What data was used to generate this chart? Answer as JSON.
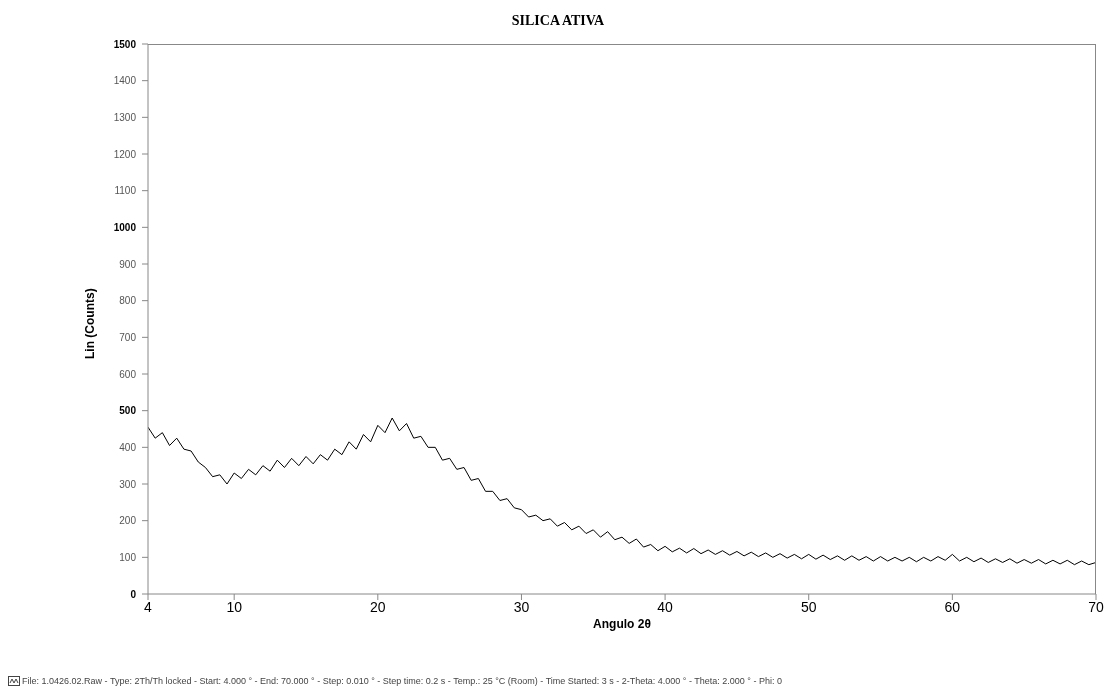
{
  "chart_data": {
    "type": "line",
    "title": "SILICA ATIVA",
    "xlabel": "Angulo 2θ",
    "ylabel": "Lin (Counts)",
    "annotations": [
      "File: 1.0426.02.Raw - Type: 2Th/Th locked - Start: 4.000 ° - End: 70.000 ° - Step: 0.010 ° - Step time: 0.2 s - Temp.: 25 °C (Room) - Time Started: 3 s - 2-Theta: 4.000 ° - Theta: 2.000 ° - Phi: 0"
    ],
    "x": [
      4,
      4.5,
      5,
      5.5,
      6,
      6.5,
      7,
      7.5,
      8,
      8.5,
      9,
      9.5,
      10,
      10.5,
      11,
      11.5,
      12,
      12.5,
      13,
      13.5,
      14,
      14.5,
      15,
      15.5,
      16,
      16.5,
      17,
      17.5,
      18,
      18.5,
      19,
      19.5,
      20,
      20.5,
      21,
      21.5,
      22,
      22.5,
      23,
      23.5,
      24,
      24.5,
      25,
      25.5,
      26,
      26.5,
      27,
      27.5,
      28,
      28.5,
      29,
      29.5,
      30,
      30.5,
      31,
      31.5,
      32,
      32.5,
      33,
      33.5,
      34,
      34.5,
      35,
      35.5,
      36,
      36.5,
      37,
      37.5,
      38,
      38.5,
      39,
      39.5,
      40,
      40.5,
      41,
      41.5,
      42,
      42.5,
      43,
      43.5,
      44,
      44.5,
      45,
      45.5,
      46,
      46.5,
      47,
      47.5,
      48,
      48.5,
      49,
      49.5,
      50,
      50.5,
      51,
      51.5,
      52,
      52.5,
      53,
      53.5,
      54,
      54.5,
      55,
      55.5,
      56,
      56.5,
      57,
      57.5,
      58,
      58.5,
      59,
      59.5,
      60,
      60.5,
      61,
      61.5,
      62,
      62.5,
      63,
      63.5,
      64,
      64.5,
      65,
      65.5,
      66,
      66.5,
      67,
      67.5,
      68,
      68.5,
      69,
      69.5,
      70
    ],
    "series": [
      {
        "color": "#000000",
        "values": [
          455,
          425,
          440,
          405,
          425,
          395,
          390,
          360,
          345,
          320,
          325,
          300,
          330,
          315,
          340,
          325,
          350,
          335,
          365,
          345,
          370,
          350,
          375,
          355,
          380,
          365,
          395,
          380,
          415,
          395,
          435,
          415,
          460,
          440,
          480,
          445,
          465,
          425,
          430,
          400,
          400,
          365,
          370,
          340,
          345,
          310,
          315,
          280,
          280,
          255,
          260,
          235,
          230,
          210,
          215,
          200,
          205,
          185,
          195,
          175,
          185,
          165,
          175,
          155,
          170,
          148,
          155,
          138,
          150,
          128,
          135,
          118,
          130,
          115,
          125,
          112,
          124,
          110,
          120,
          108,
          118,
          106,
          116,
          104,
          114,
          102,
          112,
          100,
          110,
          98,
          108,
          96,
          108,
          95,
          106,
          94,
          104,
          92,
          104,
          92,
          102,
          90,
          102,
          90,
          100,
          90,
          100,
          88,
          100,
          90,
          102,
          92,
          108,
          90,
          100,
          88,
          98,
          86,
          96,
          86,
          96,
          84,
          94,
          84,
          94,
          82,
          92,
          82,
          92,
          80,
          90,
          80,
          86
        ]
      }
    ],
    "xlim": [
      4,
      70
    ],
    "xticks": [
      4,
      10,
      20,
      30,
      40,
      50,
      60,
      70
    ],
    "ylim": [
      0,
      1500
    ],
    "yticks": [
      0,
      100,
      200,
      300,
      400,
      500,
      600,
      700,
      800,
      900,
      1000,
      1100,
      1200,
      1300,
      1400,
      1500
    ],
    "grid": false,
    "legend": false,
    "marker": "none",
    "line_style": "solid"
  }
}
